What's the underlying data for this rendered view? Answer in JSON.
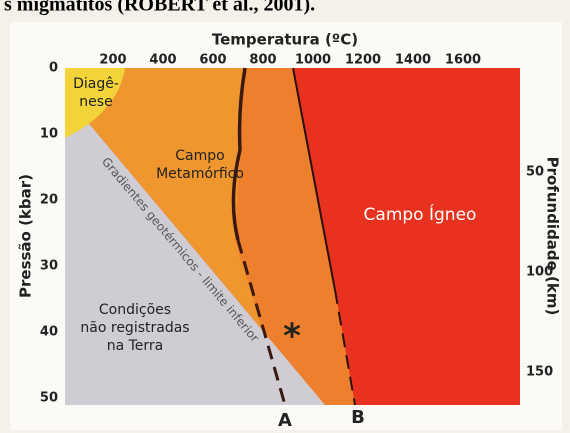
{
  "header": {
    "caption": "s migmatitos (ROBERT et al., 2001)."
  },
  "axes": {
    "top": {
      "title": "Temperatura (ºC)",
      "ticks": [
        "200",
        "400",
        "600",
        "800",
        "1000",
        "1200",
        "1400",
        "1600"
      ]
    },
    "left": {
      "title": "Pressão (kbar)",
      "ticks": [
        "0",
        "10",
        "20",
        "30",
        "40",
        "50"
      ]
    },
    "right": {
      "title": "Profundidade (km)",
      "ticks": [
        "50",
        "100",
        "150"
      ]
    }
  },
  "regions": {
    "diagenesis": [
      "Diagê-",
      "nese"
    ],
    "metamorphic": [
      "Campo",
      "Metamórfico"
    ],
    "igneous": "Campo Ígneo",
    "gradient": "Gradientes geotérmicos - limite inferior",
    "unrecorded": [
      "Condições",
      "não registradas",
      "na Terra"
    ]
  },
  "curves": {
    "a": "A",
    "b": "B",
    "marker": "*"
  }
}
